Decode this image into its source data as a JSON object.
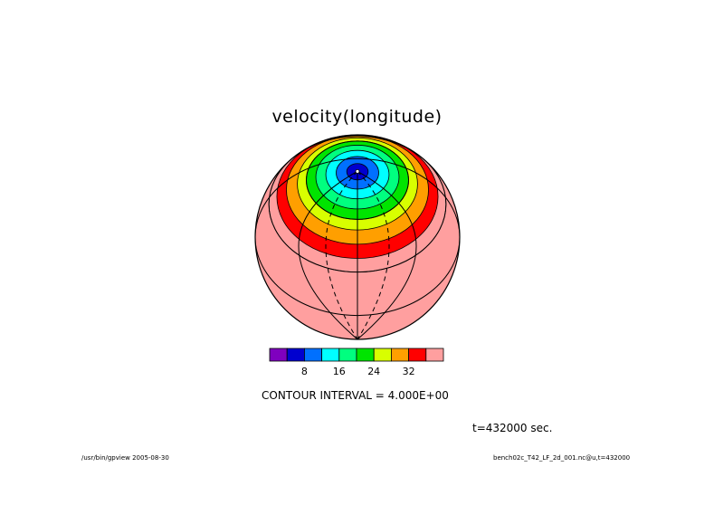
{
  "chart_data": {
    "type": "heatmap",
    "title": "velocity(longitude)",
    "projection": "orthographic",
    "contour_levels": [
      4,
      8,
      12,
      16,
      20,
      24,
      28,
      32,
      36
    ],
    "colors": [
      "#7f00bf",
      "#0000cf",
      "#0070ff",
      "#00ffff",
      "#00ff7f",
      "#00e400",
      "#d8ff00",
      "#ff9f00",
      "#ff0000",
      "#ff9f9f"
    ],
    "colorbar_ticks": [
      "8",
      "16",
      "24",
      "32"
    ],
    "contour_interval": "CONTOUR INTERVAL = 4.000E+00",
    "time": "t=432000 sec."
  },
  "footer": {
    "left": "/usr/bin/gpview  2005-08-30",
    "right": "bench02c_T42_LF_2d_001.nc@u,t=432000"
  }
}
